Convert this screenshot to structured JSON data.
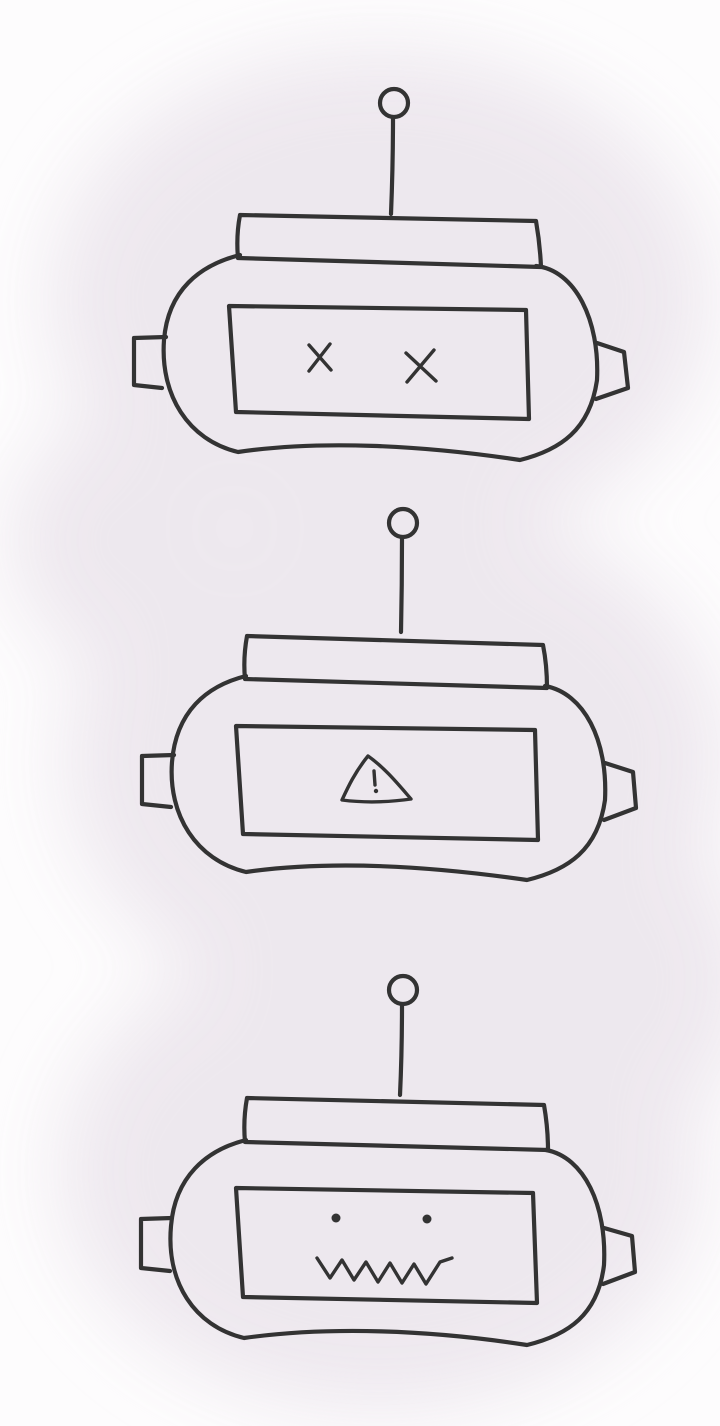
{
  "style": {
    "ink_color": "#333333",
    "wash_color": "#ece6ed",
    "paper_color": "#fdfcfd"
  },
  "robots": [
    {
      "name": "robot-dead",
      "face": "x-eyes"
    },
    {
      "name": "robot-warning",
      "face": "warning-triangle-icon"
    },
    {
      "name": "robot-zigzag",
      "face": "dot-eyes-zigzag-mouth"
    }
  ]
}
